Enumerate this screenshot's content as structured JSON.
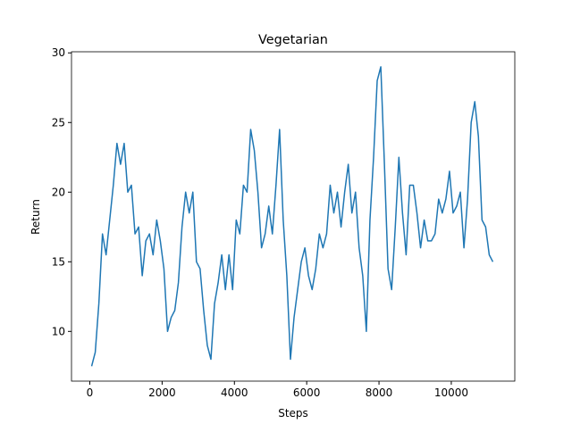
{
  "chart_data": {
    "type": "line",
    "title": "Vegetarian",
    "x_label": "Steps",
    "y_label": "Return",
    "x": [
      50,
      150,
      250,
      350,
      450,
      550,
      650,
      750,
      850,
      950,
      1050,
      1150,
      1250,
      1350,
      1450,
      1550,
      1650,
      1750,
      1850,
      1950,
      2050,
      2150,
      2250,
      2350,
      2450,
      2550,
      2650,
      2750,
      2850,
      2950,
      3050,
      3150,
      3250,
      3350,
      3450,
      3550,
      3650,
      3750,
      3850,
      3950,
      4050,
      4150,
      4250,
      4350,
      4450,
      4550,
      4650,
      4750,
      4850,
      4950,
      5050,
      5150,
      5250,
      5350,
      5450,
      5550,
      5650,
      5750,
      5850,
      5950,
      6050,
      6150,
      6250,
      6350,
      6450,
      6550,
      6650,
      6750,
      6850,
      6950,
      7050,
      7150,
      7250,
      7350,
      7450,
      7550,
      7650,
      7750,
      7850,
      7950,
      8050,
      8150,
      8250,
      8350,
      8450,
      8550,
      8650,
      8750,
      8850,
      8950,
      9050,
      9150,
      9250,
      9350,
      9450,
      9550,
      9650,
      9750,
      9850,
      9950,
      10050,
      10150,
      10250,
      10350,
      10450,
      10550,
      10650,
      10750,
      10850,
      10950,
      11050,
      11150
    ],
    "series": [
      {
        "color": "#1f77b4",
        "values": [
          7.5,
          8.5,
          12,
          17,
          15.5,
          18,
          20.5,
          23.5,
          22,
          23.5,
          20,
          20.5,
          17,
          17.5,
          14,
          16.5,
          17,
          15.5,
          18,
          16.5,
          14.5,
          10,
          11,
          11.5,
          13.5,
          17.5,
          20,
          18.5,
          20,
          15,
          14.5,
          11.5,
          9,
          8,
          12,
          13.5,
          15.5,
          13,
          15.5,
          13,
          18,
          17,
          20.5,
          20,
          24.5,
          23,
          20,
          16,
          17,
          19,
          17,
          20.5,
          24.5,
          18,
          14,
          8,
          11,
          13,
          15,
          16,
          14,
          13,
          14.5,
          17,
          16,
          17,
          20.5,
          18.5,
          20,
          17.5,
          20,
          22,
          18.5,
          20,
          16,
          14,
          10,
          18,
          22.5,
          28,
          29,
          22,
          14.5,
          13,
          17.5,
          22.5,
          18.5,
          15.5,
          20.5,
          20.5,
          18.5,
          16,
          18,
          16.5,
          16.5,
          17,
          19.5,
          18.5,
          19.5,
          21.5,
          18.5,
          19,
          20,
          16,
          19.5,
          25,
          26.5,
          24,
          18,
          17.5,
          15.5,
          15
        ]
      }
    ],
    "xlim": [
      -507,
      11757
    ],
    "ylim": [
      6.43,
      30.08
    ],
    "xticks": [
      0,
      2000,
      4000,
      6000,
      8000,
      10000
    ],
    "yticks": [
      10,
      15,
      20,
      25,
      30
    ]
  }
}
